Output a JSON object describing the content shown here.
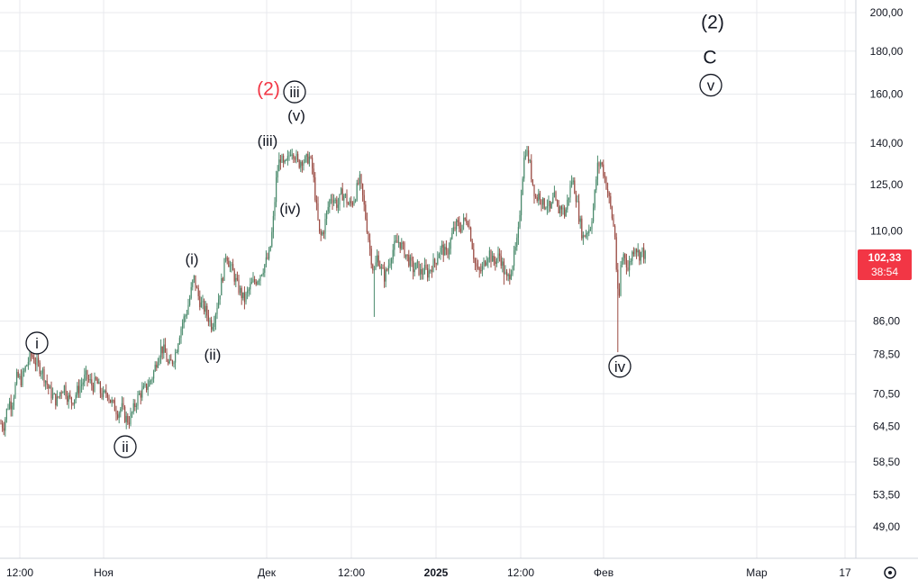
{
  "chart_data": {
    "type": "candlestick",
    "scale": "log",
    "grid": true,
    "ylim": [
      44,
      215
    ],
    "y_ticks": [
      "200,00",
      "180,00",
      "160,00",
      "140,00",
      "125,00",
      "110,00",
      "86,00",
      "78,50",
      "70,50",
      "64,50",
      "58,50",
      "53,50",
      "49,00"
    ],
    "x_ticks": [
      "12:00",
      "Ноя",
      "Дек",
      "12:00",
      "2025",
      "12:00",
      "Фев",
      "Мар",
      "17"
    ],
    "last_price": {
      "value": "102,33",
      "countdown": "38:54"
    },
    "colors": {
      "up": "#4a8a6c",
      "down": "#9a4a42",
      "grid": "#e8eaed",
      "last_price_bg": "#f23645"
    },
    "close_series": [
      [
        0,
        65
      ],
      [
        3,
        64.5
      ],
      [
        6,
        67
      ],
      [
        9,
        69
      ],
      [
        12,
        68.5
      ],
      [
        15,
        71
      ],
      [
        18,
        74
      ],
      [
        22,
        73
      ],
      [
        26,
        75
      ],
      [
        30,
        77
      ],
      [
        34,
        78.5
      ],
      [
        38,
        77
      ],
      [
        42,
        76
      ],
      [
        46,
        75
      ],
      [
        50,
        73
      ],
      [
        54,
        71
      ],
      [
        58,
        70
      ],
      [
        62,
        69
      ],
      [
        66,
        71
      ],
      [
        70,
        72
      ],
      [
        74,
        70
      ],
      [
        78,
        69
      ],
      [
        82,
        70
      ],
      [
        86,
        71.5
      ],
      [
        90,
        72.5
      ],
      [
        94,
        74
      ],
      [
        98,
        73
      ],
      [
        102,
        72
      ],
      [
        106,
        73
      ],
      [
        110,
        71
      ],
      [
        114,
        70
      ],
      [
        118,
        71
      ],
      [
        122,
        69
      ],
      [
        126,
        68
      ],
      [
        130,
        67
      ],
      [
        134,
        68
      ],
      [
        138,
        66
      ],
      [
        142,
        65.5
      ],
      [
        146,
        67
      ],
      [
        150,
        69
      ],
      [
        154,
        70.5
      ],
      [
        158,
        71
      ],
      [
        162,
        72
      ],
      [
        166,
        73
      ],
      [
        170,
        75
      ],
      [
        174,
        78
      ],
      [
        178,
        80
      ],
      [
        182,
        79
      ],
      [
        186,
        76
      ],
      [
        190,
        77
      ],
      [
        194,
        79
      ],
      [
        198,
        83
      ],
      [
        202,
        86
      ],
      [
        206,
        88
      ],
      [
        210,
        92
      ],
      [
        214,
        97
      ],
      [
        218,
        93
      ],
      [
        222,
        90
      ],
      [
        226,
        89
      ],
      [
        230,
        87
      ],
      [
        234,
        85
      ],
      [
        238,
        88
      ],
      [
        242,
        92
      ],
      [
        246,
        97
      ],
      [
        250,
        104
      ],
      [
        254,
        100
      ],
      [
        258,
        98
      ],
      [
        262,
        95
      ],
      [
        266,
        93
      ],
      [
        270,
        91
      ],
      [
        274,
        93
      ],
      [
        278,
        95
      ],
      [
        282,
        96
      ],
      [
        286,
        97
      ],
      [
        290,
        99
      ],
      [
        294,
        101
      ],
      [
        298,
        103
      ],
      [
        302,
        112
      ],
      [
        306,
        128
      ],
      [
        310,
        135
      ],
      [
        314,
        131
      ],
      [
        318,
        133
      ],
      [
        322,
        138
      ],
      [
        326,
        136
      ],
      [
        330,
        132
      ],
      [
        334,
        134
      ],
      [
        338,
        133
      ],
      [
        342,
        135
      ],
      [
        346,
        130
      ],
      [
        350,
        118
      ],
      [
        354,
        108
      ],
      [
        358,
        110
      ],
      [
        362,
        116
      ],
      [
        366,
        121
      ],
      [
        370,
        120
      ],
      [
        374,
        118
      ],
      [
        378,
        122
      ],
      [
        382,
        121
      ],
      [
        386,
        118
      ],
      [
        390,
        119
      ],
      [
        394,
        122
      ],
      [
        398,
        127
      ],
      [
        402,
        120
      ],
      [
        406,
        112
      ],
      [
        410,
        104
      ],
      [
        414,
        98
      ],
      [
        418,
        103
      ],
      [
        422,
        99
      ],
      [
        426,
        97
      ],
      [
        430,
        100
      ],
      [
        434,
        104
      ],
      [
        438,
        106
      ],
      [
        442,
        107
      ],
      [
        446,
        105
      ],
      [
        450,
        103
      ],
      [
        454,
        101
      ],
      [
        458,
        99
      ],
      [
        462,
        100
      ],
      [
        466,
        98
      ],
      [
        470,
        99
      ],
      [
        474,
        98
      ],
      [
        478,
        100
      ],
      [
        482,
        101
      ],
      [
        486,
        104
      ],
      [
        490,
        105
      ],
      [
        494,
        103
      ],
      [
        498,
        106
      ],
      [
        502,
        110
      ],
      [
        506,
        112
      ],
      [
        510,
        111
      ],
      [
        514,
        113
      ],
      [
        518,
        114
      ],
      [
        522,
        108
      ],
      [
        526,
        101
      ],
      [
        530,
        98
      ],
      [
        534,
        99
      ],
      [
        538,
        102
      ],
      [
        542,
        104
      ],
      [
        546,
        101
      ],
      [
        550,
        102
      ],
      [
        554,
        103
      ],
      [
        558,
        99
      ],
      [
        562,
        96
      ],
      [
        566,
        99
      ],
      [
        570,
        103
      ],
      [
        574,
        108
      ],
      [
        578,
        125
      ],
      [
        582,
        138
      ],
      [
        586,
        134
      ],
      [
        590,
        126
      ],
      [
        594,
        120
      ],
      [
        598,
        122
      ],
      [
        602,
        118
      ],
      [
        606,
        119
      ],
      [
        610,
        116
      ],
      [
        614,
        121
      ],
      [
        618,
        116
      ],
      [
        622,
        118
      ],
      [
        626,
        115
      ],
      [
        630,
        121
      ],
      [
        634,
        127
      ],
      [
        638,
        122
      ],
      [
        642,
        114
      ],
      [
        646,
        108
      ],
      [
        650,
        110
      ],
      [
        654,
        111
      ],
      [
        658,
        118
      ],
      [
        662,
        131
      ],
      [
        666,
        133
      ],
      [
        670,
        128
      ],
      [
        674,
        122
      ],
      [
        678,
        115
      ],
      [
        682,
        108
      ],
      [
        684,
        94
      ],
      [
        686,
        90
      ],
      [
        688,
        100
      ],
      [
        692,
        104
      ],
      [
        696,
        99
      ],
      [
        700,
        103
      ],
      [
        704,
        106
      ],
      [
        708,
        103
      ],
      [
        712,
        104
      ],
      [
        716,
        102.3
      ]
    ],
    "spikes": [
      [
        414,
        87
      ],
      [
        684,
        79
      ],
      [
        558,
        95
      ],
      [
        146,
        66
      ]
    ],
    "wave_labels": [
      {
        "text": "i",
        "circled": true,
        "x": 41,
        "price": 81
      },
      {
        "text": "ii",
        "circled": true,
        "x": 139,
        "price": 61
      },
      {
        "text": "(i)",
        "circled": false,
        "x": 213,
        "price": 102
      },
      {
        "text": "(ii)",
        "circled": false,
        "x": 236,
        "price": 78.5
      },
      {
        "text": "(iii)",
        "circled": false,
        "x": 297,
        "price": 141
      },
      {
        "text": "(iv)",
        "circled": false,
        "x": 322,
        "price": 117
      },
      {
        "text": "(v)",
        "circled": false,
        "x": 329,
        "price": 151
      },
      {
        "text": "(2)",
        "circled": false,
        "x": 298,
        "price": 162,
        "color": "#f23645"
      },
      {
        "text": "iii",
        "circled": true,
        "x": 327,
        "price": 161
      },
      {
        "text": "iv",
        "circled": true,
        "x": 688,
        "price": 76
      },
      {
        "text": "(2)",
        "circled": false,
        "x": 791,
        "price": 195,
        "big": true
      },
      {
        "text": "C",
        "circled": false,
        "x": 788,
        "price": 177,
        "big": true
      },
      {
        "text": "v",
        "circled": true,
        "x": 789,
        "price": 164
      }
    ]
  }
}
